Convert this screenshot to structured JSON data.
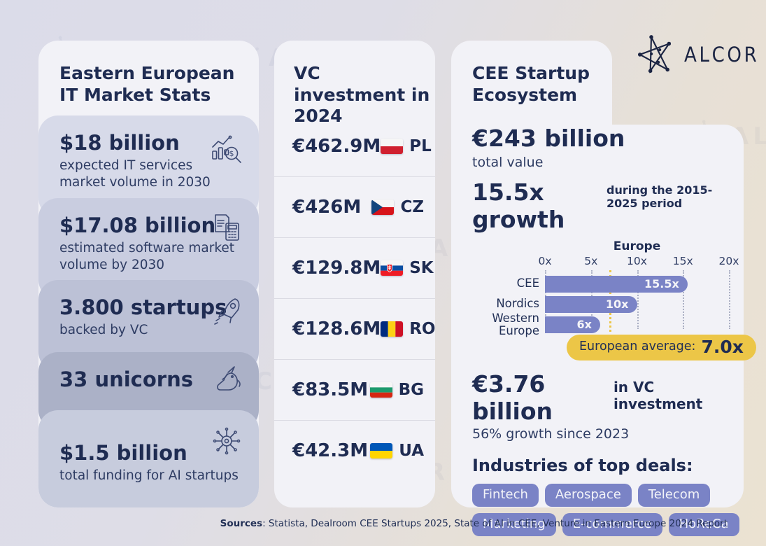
{
  "brand": {
    "name": "ALCOR"
  },
  "left_card": {
    "title": "Eastern European IT Market Stats",
    "stats": [
      {
        "value": "$18 billion",
        "label": "expected IT services market volume in 2030",
        "icon": "bar-chart-magnifier"
      },
      {
        "value": "$17.08 billion",
        "label": "estimated software market volume by 2030",
        "icon": "document-calculator"
      },
      {
        "value": "3.800 startups",
        "label": "backed by VC",
        "icon": "rocket"
      },
      {
        "value": "33 unicorns",
        "label": "",
        "icon": "unicorn"
      },
      {
        "value": "$1.5 billion",
        "label": "total funding for AI startups",
        "icon": "ai-chip"
      }
    ]
  },
  "vc_card": {
    "title": "VC investment in 2024",
    "rows": [
      {
        "amount": "€462.9M",
        "country_code": "PL",
        "flag": "poland"
      },
      {
        "amount": "€426M",
        "country_code": "CZ",
        "flag": "czechia"
      },
      {
        "amount": "€129.8M",
        "country_code": "SK",
        "flag": "slovakia"
      },
      {
        "amount": "€128.6M",
        "country_code": "RO",
        "flag": "romania"
      },
      {
        "amount": "€83.5M",
        "country_code": "BG",
        "flag": "bulgaria"
      },
      {
        "amount": "€42.3M",
        "country_code": "UA",
        "flag": "ukraine"
      }
    ]
  },
  "ecosystem_card": {
    "title": "CEE Startup Ecosystem",
    "total_value": "€243 billion",
    "total_value_label": "total value",
    "growth_value": "15.5x growth",
    "growth_note": "during the 2015-2025 period",
    "vc_investment_value": "€3.76 billion",
    "vc_investment_suffix": "in VC investment",
    "vc_growth_note": "56% growth since 2023",
    "industries_title": "Industries of top deals:",
    "industries": [
      "Fintech",
      "Aerospace",
      "Telecom",
      "Marketing",
      "E-commerce",
      "HoReCa"
    ]
  },
  "chart_data": {
    "type": "bar",
    "orientation": "horizontal",
    "title": "Europe",
    "categories": [
      "CEE",
      "Nordics",
      "Western Europe"
    ],
    "values": [
      15.5,
      10,
      6
    ],
    "value_labels": [
      "15.5x",
      "10x",
      "6x"
    ],
    "x_ticks": [
      "0x",
      "5x",
      "10x",
      "15x",
      "20x"
    ],
    "xlim": [
      0,
      20
    ],
    "grid": "dotted-vertical",
    "legend": "none",
    "reference_line": {
      "value": 7.0,
      "label": "European average:",
      "value_label": "7.0x"
    },
    "bar_color": "#7a83c6",
    "reference_color": "#ecc647"
  },
  "footer": {
    "sources_label": "Sources",
    "sources_text": ": Statista, Dealroom CEE Startups 2025, State of AI in CEE, Venture in Eastern Europe 2024 Report"
  },
  "colors": {
    "accent_periwinkle": "#7a83c6",
    "accent_yellow": "#ecc647",
    "heading_navy": "#1f2c52",
    "card_bg": "#f2f2f7"
  }
}
